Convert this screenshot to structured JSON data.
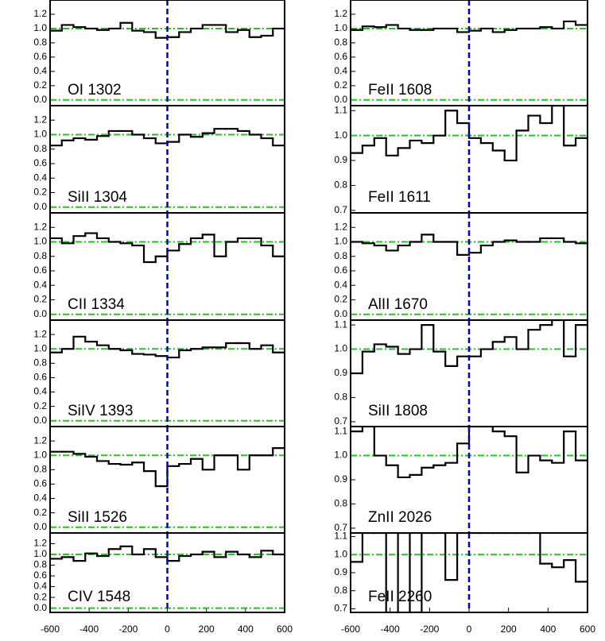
{
  "chart_data": [
    {
      "type": "step",
      "label": "OI 1302",
      "xlim": [
        -600,
        600
      ],
      "ylim": [
        -0.08,
        1.4
      ],
      "yticks": [
        {
          "value": 0,
          "label": "0.0"
        },
        0.2,
        0.4,
        0.6,
        0.8,
        {
          "value": 1,
          "label": "1.0"
        },
        1.2
      ],
      "reference_x": 0,
      "reference_y": 1,
      "x": [
        -570,
        -510,
        -450,
        -390,
        -330,
        -270,
        -210,
        -150,
        -90,
        -30,
        30,
        90,
        150,
        210,
        270,
        330,
        390,
        450,
        510,
        570
      ],
      "values": [
        0.97,
        1.05,
        1.02,
        1.0,
        0.98,
        1.0,
        1.08,
        0.97,
        0.95,
        0.87,
        0.88,
        0.95,
        1.0,
        1.05,
        1.05,
        0.95,
        0.98,
        0.88,
        0.9,
        1.0
      ]
    },
    {
      "type": "step",
      "label": "SiII 1304",
      "xlim": [
        -600,
        600
      ],
      "ylim": [
        -0.08,
        1.4
      ],
      "yticks": [
        {
          "value": 0,
          "label": "0.0"
        },
        0.2,
        0.4,
        0.6,
        0.8,
        {
          "value": 1,
          "label": "1.0"
        },
        1.2
      ],
      "reference_x": 0,
      "reference_y": 1,
      "x": [
        -570,
        -510,
        -450,
        -390,
        -330,
        -270,
        -210,
        -150,
        -90,
        -30,
        30,
        90,
        150,
        210,
        270,
        330,
        390,
        450,
        510,
        570
      ],
      "values": [
        0.85,
        0.92,
        0.95,
        0.93,
        0.98,
        1.05,
        1.05,
        1.0,
        0.95,
        0.88,
        0.9,
        1.0,
        0.97,
        1.02,
        1.08,
        1.08,
        1.05,
        1.0,
        0.95,
        0.85
      ]
    },
    {
      "type": "step",
      "label": "CII 1334",
      "xlim": [
        -600,
        600
      ],
      "ylim": [
        -0.08,
        1.4
      ],
      "yticks": [
        {
          "value": 0,
          "label": "0.0"
        },
        0.2,
        0.4,
        0.6,
        0.8,
        {
          "value": 1,
          "label": "1.0"
        },
        1.2
      ],
      "reference_x": 0,
      "reference_y": 1,
      "x": [
        -570,
        -510,
        -450,
        -390,
        -330,
        -270,
        -210,
        -150,
        -90,
        -30,
        30,
        90,
        150,
        210,
        270,
        330,
        390,
        450,
        510,
        570
      ],
      "values": [
        1.05,
        0.98,
        1.08,
        1.12,
        1.05,
        1.0,
        0.98,
        0.95,
        0.72,
        0.8,
        0.88,
        0.97,
        1.05,
        1.1,
        0.8,
        1.0,
        1.05,
        1.05,
        0.95,
        0.8
      ]
    },
    {
      "type": "step",
      "label": "SiIV 1393",
      "xlim": [
        -600,
        600
      ],
      "ylim": [
        -0.08,
        1.4
      ],
      "yticks": [
        {
          "value": 0,
          "label": "0.0"
        },
        0.2,
        0.4,
        0.6,
        0.8,
        {
          "value": 1,
          "label": "1.0"
        },
        1.2
      ],
      "reference_x": 0,
      "reference_y": 1,
      "x": [
        -570,
        -510,
        -450,
        -390,
        -330,
        -270,
        -210,
        -150,
        -90,
        -30,
        30,
        90,
        150,
        210,
        270,
        330,
        390,
        450,
        510,
        570
      ],
      "values": [
        0.95,
        1.0,
        1.17,
        1.1,
        1.05,
        1.0,
        0.98,
        0.93,
        0.92,
        0.9,
        0.88,
        0.98,
        1.0,
        1.02,
        1.02,
        1.08,
        1.08,
        1.0,
        1.05,
        0.95
      ]
    },
    {
      "type": "step",
      "label": "SiII 1526",
      "xlim": [
        -600,
        600
      ],
      "ylim": [
        -0.08,
        1.4
      ],
      "yticks": [
        {
          "value": 0,
          "label": "0.0"
        },
        0.2,
        0.4,
        0.6,
        0.8,
        {
          "value": 1,
          "label": "1.0"
        },
        1.2
      ],
      "reference_x": 0,
      "reference_y": 1,
      "x": [
        -570,
        -510,
        -450,
        -390,
        -330,
        -270,
        -210,
        -150,
        -90,
        -30,
        30,
        90,
        150,
        210,
        270,
        330,
        390,
        450,
        510,
        570
      ],
      "values": [
        1.05,
        1.05,
        1.02,
        0.98,
        0.92,
        0.88,
        0.87,
        0.9,
        0.78,
        0.57,
        0.85,
        0.88,
        0.95,
        0.8,
        1.0,
        1.0,
        0.8,
        1.0,
        1.0,
        1.1
      ]
    },
    {
      "type": "step",
      "label": "CIV 1548",
      "xlim": [
        -600,
        600
      ],
      "ylim": [
        -0.08,
        1.4
      ],
      "yticks": [
        {
          "value": 0,
          "label": "0.0"
        },
        0.2,
        0.4,
        0.6,
        0.8,
        {
          "value": 1,
          "label": "1.0"
        },
        1.2
      ],
      "xticks": [
        -600,
        -400,
        -200,
        0,
        200,
        400,
        600
      ],
      "reference_x": 0,
      "reference_y": 1,
      "x": [
        -570,
        -510,
        -450,
        -390,
        -330,
        -270,
        -210,
        -150,
        -90,
        -30,
        30,
        90,
        150,
        210,
        270,
        330,
        390,
        450,
        510,
        570
      ],
      "values": [
        0.92,
        0.95,
        0.88,
        1.02,
        0.97,
        1.1,
        1.15,
        1.0,
        1.1,
        0.95,
        0.88,
        0.97,
        1.0,
        1.05,
        0.95,
        1.05,
        1.0,
        0.95,
        1.07,
        1.0
      ]
    },
    {
      "type": "step",
      "label": "FeII 1608",
      "xlim": [
        -600,
        600
      ],
      "ylim": [
        -0.08,
        1.4
      ],
      "yticks": [
        {
          "value": 0,
          "label": "0.0"
        },
        0.2,
        0.4,
        0.6,
        0.8,
        {
          "value": 1,
          "label": "1.0"
        },
        1.2
      ],
      "reference_x": 0,
      "reference_y": 1,
      "x": [
        -570,
        -510,
        -450,
        -390,
        -330,
        -270,
        -210,
        -150,
        -90,
        -30,
        30,
        90,
        150,
        210,
        270,
        330,
        390,
        450,
        510,
        570
      ],
      "values": [
        0.98,
        1.03,
        1.02,
        1.05,
        1.0,
        0.98,
        0.98,
        1.0,
        1.0,
        0.95,
        0.97,
        1.0,
        0.95,
        0.98,
        1.0,
        1.0,
        1.02,
        1.0,
        1.1,
        1.05
      ]
    },
    {
      "type": "step",
      "label": "FeII 1611",
      "xlim": [
        -600,
        600
      ],
      "ylim": [
        0.69,
        1.12
      ],
      "yticks": [
        0.7,
        0.8,
        0.9,
        {
          "value": 1,
          "label": "1.0"
        },
        1.1
      ],
      "reference_x": 0,
      "reference_y": 1,
      "x": [
        -570,
        -510,
        -450,
        -390,
        -330,
        -270,
        -210,
        -150,
        -90,
        -30,
        30,
        90,
        150,
        210,
        270,
        330,
        390,
        450,
        510,
        570
      ],
      "values": [
        0.93,
        0.96,
        0.99,
        0.92,
        0.95,
        0.98,
        0.97,
        1.0,
        1.1,
        1.05,
        0.99,
        0.97,
        0.94,
        0.9,
        1.02,
        1.08,
        1.05,
        1.12,
        0.96,
        0.99
      ]
    },
    {
      "type": "step",
      "label": "AlII 1670",
      "xlim": [
        -600,
        600
      ],
      "ylim": [
        -0.08,
        1.4
      ],
      "yticks": [
        {
          "value": 0,
          "label": "0.0"
        },
        0.2,
        0.4,
        0.6,
        0.8,
        {
          "value": 1,
          "label": "1.0"
        },
        1.2
      ],
      "reference_x": 0,
      "reference_y": 1,
      "x": [
        -570,
        -510,
        -450,
        -390,
        -330,
        -270,
        -210,
        -150,
        -90,
        -30,
        30,
        90,
        150,
        210,
        270,
        330,
        390,
        450,
        510,
        570
      ],
      "values": [
        1.0,
        0.98,
        0.95,
        0.88,
        0.95,
        1.0,
        1.1,
        1.0,
        1.0,
        0.82,
        0.85,
        0.95,
        1.0,
        1.02,
        1.0,
        1.0,
        1.05,
        1.05,
        1.0,
        0.98
      ]
    },
    {
      "type": "step",
      "label": "SiII 1808",
      "xlim": [
        -600,
        600
      ],
      "ylim": [
        0.68,
        1.12
      ],
      "yticks": [
        0.7,
        0.8,
        0.9,
        {
          "value": 1,
          "label": "1.0"
        },
        1.1
      ],
      "reference_x": 0,
      "reference_y": 1,
      "x": [
        -570,
        -510,
        -450,
        -390,
        -330,
        -270,
        -210,
        -150,
        -90,
        -30,
        30,
        90,
        150,
        210,
        270,
        330,
        390,
        450,
        510,
        570
      ],
      "values": [
        0.9,
        0.99,
        1.02,
        1.01,
        0.98,
        1.0,
        1.1,
        0.99,
        0.93,
        0.97,
        0.97,
        1.0,
        1.03,
        1.05,
        1.0,
        1.08,
        1.1,
        1.12,
        0.97,
        1.1
      ]
    },
    {
      "type": "step",
      "label": "ZnII 2026",
      "xlim": [
        -600,
        600
      ],
      "ylim": [
        0.68,
        1.12
      ],
      "yticks": [
        0.7,
        0.8,
        0.9,
        {
          "value": 1,
          "label": "1.0"
        },
        1.1
      ],
      "reference_x": 0,
      "reference_y": 1,
      "x": [
        -570,
        -510,
        -450,
        -390,
        -330,
        -270,
        -210,
        -150,
        -90,
        -30,
        30,
        90,
        150,
        210,
        270,
        330,
        390,
        450,
        510,
        570
      ],
      "values": [
        1.1,
        1.12,
        1.0,
        0.96,
        0.91,
        0.92,
        0.95,
        0.96,
        0.97,
        1.05,
        1.12,
        1.12,
        1.1,
        1.08,
        0.93,
        1.0,
        0.98,
        0.97,
        1.1,
        0.98
      ]
    },
    {
      "type": "step",
      "label": "FeII 2260",
      "xlim": [
        -600,
        600
      ],
      "ylim": [
        0.68,
        1.12
      ],
      "yticks": [
        0.7,
        0.8,
        0.9,
        {
          "value": 1,
          "label": "1.0"
        },
        1.1
      ],
      "xticks": [
        -600,
        -400,
        -200,
        0,
        200,
        400,
        600
      ],
      "reference_x": 0,
      "reference_y": 1,
      "x": [
        -570,
        -510,
        -450,
        -390,
        -330,
        -270,
        -210,
        -150,
        -90,
        -30,
        30,
        90,
        150,
        210,
        270,
        330,
        390,
        450,
        510,
        570
      ],
      "values": [
        0.96,
        1.12,
        1.12,
        0.68,
        1.12,
        0.68,
        1.12,
        1.12,
        0.86,
        1.12,
        1.12,
        1.12,
        1.12,
        1.12,
        1.12,
        1.12,
        0.95,
        0.93,
        0.97,
        0.85
      ]
    }
  ]
}
